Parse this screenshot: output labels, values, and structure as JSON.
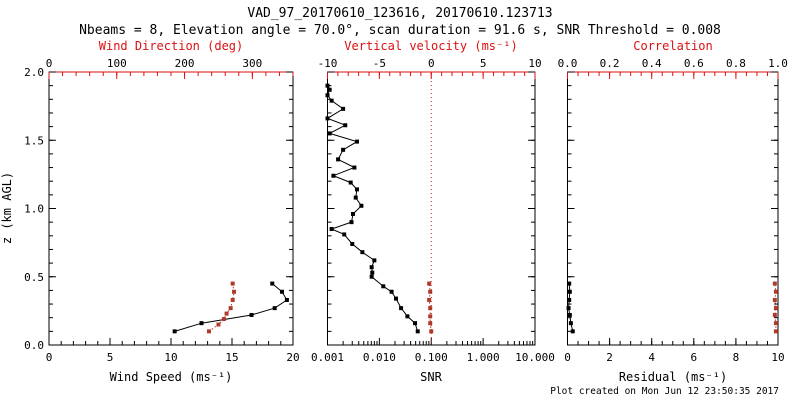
{
  "header": {
    "title": "VAD_97_20170610_123616, 20170610.123713",
    "subtitle": "Nbeams = 8, Elevation angle = 70.0°, scan duration = 91.6 s, SNR Threshold = 0.008"
  },
  "footer": {
    "created_text": "Plot created on Mon Jun 12 23:50:35 2017"
  },
  "colors": {
    "axis_red": "#dd1111",
    "series_red": "#b03a2a",
    "series_black": "#000000",
    "background": "#ffffff"
  },
  "chart_data": {
    "type": "scatter",
    "title": "VAD_97_20170610_123616, 20170610.123713",
    "subtitle": "Nbeams = 8, Elevation angle = 70.0°, scan duration = 91.6 s, SNR Threshold = 0.008",
    "grid": false,
    "legend": false,
    "y_axis": {
      "label": "z (km AGL)",
      "lim": [
        0,
        2
      ],
      "ticks": [
        0,
        0.5,
        1.0,
        1.5,
        2.0
      ],
      "tick_labels": [
        "0.0",
        "0.5",
        "1.0",
        "1.5",
        "2.0"
      ],
      "minor": 0.1
    },
    "panels": [
      {
        "id": "wind",
        "top_axis": {
          "label": "Wind Direction (deg)",
          "lim": [
            0,
            360
          ],
          "ticks": [
            0,
            100,
            200,
            300
          ],
          "tick_labels": [
            "0",
            "100",
            "200",
            "300"
          ],
          "minor": 20,
          "color": "red"
        },
        "bottom_axis": {
          "label": "Wind Speed (ms⁻¹)",
          "lim": [
            0,
            20
          ],
          "ticks": [
            0,
            5,
            10,
            15,
            20
          ],
          "tick_labels": [
            "0",
            "5",
            "10",
            "15",
            "20"
          ],
          "minor": 1,
          "color": "black"
        },
        "series": [
          {
            "name": "wind-speed",
            "axis": "bottom",
            "color": "black",
            "line": "solid",
            "z": [
              0.1,
              0.16,
              0.22,
              0.27,
              0.33,
              0.39,
              0.45
            ],
            "values": [
              10.3,
              12.5,
              16.6,
              18.5,
              19.5,
              19.1,
              18.3
            ]
          },
          {
            "name": "wind-direction",
            "axis": "top",
            "color": "red",
            "line": "dotted",
            "z": [
              0.1,
              0.15,
              0.19,
              0.23,
              0.27,
              0.33,
              0.39,
              0.45
            ],
            "values": [
              236,
              250,
              258,
              262,
              268,
              271,
              273,
              271
            ]
          }
        ]
      },
      {
        "id": "snr",
        "top_axis": {
          "label": "Vertical velocity (ms⁻¹)",
          "lim": [
            -10,
            10
          ],
          "ticks": [
            -10,
            -5,
            0,
            5,
            10
          ],
          "tick_labels": [
            "-10",
            "-5",
            "0",
            "5",
            "10"
          ],
          "minor": 1,
          "color": "red"
        },
        "bottom_axis": {
          "label": "SNR",
          "scale": "log",
          "lim": [
            0.001,
            10
          ],
          "ticks": [
            0.001,
            0.01,
            0.1,
            1,
            10
          ],
          "tick_labels": [
            "0.001",
            "0.010",
            "0.100",
            "1.000",
            "10.000"
          ],
          "color": "black"
        },
        "ref_line": {
          "axis": "top",
          "value": 0,
          "color": "red",
          "style": "dotted"
        },
        "series": [
          {
            "name": "snr-profile",
            "axis": "bottom",
            "color": "black",
            "line": "solid",
            "z": [
              1.9,
              1.87,
              1.83,
              1.79,
              1.73,
              1.66,
              1.61,
              1.55,
              1.49,
              1.43,
              1.36,
              1.3,
              1.24,
              1.19,
              1.14,
              1.08,
              1.02,
              0.96,
              0.9,
              0.85,
              0.81,
              0.74,
              0.68,
              0.62,
              0.57,
              0.53,
              0.5,
              0.43,
              0.39,
              0.34,
              0.27,
              0.21,
              0.16,
              0.1
            ],
            "values": [
              0.001,
              0.0011,
              0.001,
              0.0012,
              0.002,
              0.001,
              0.0022,
              0.0011,
              0.0037,
              0.002,
              0.0016,
              0.0033,
              0.0013,
              0.0028,
              0.0037,
              0.0035,
              0.0045,
              0.0031,
              0.0029,
              0.0012,
              0.0021,
              0.003,
              0.0047,
              0.008,
              0.0071,
              0.0073,
              0.0071,
              0.0119,
              0.0172,
              0.0209,
              0.0262,
              0.0347,
              0.0487,
              0.0549
            ]
          },
          {
            "name": "vertical-velocity",
            "axis": "top",
            "color": "red",
            "line": "dotted",
            "z": [
              0.1,
              0.16,
              0.21,
              0.27,
              0.33,
              0.39,
              0.45
            ],
            "values": [
              0.0,
              -0.1,
              -0.1,
              -0.1,
              -0.2,
              -0.1,
              -0.2
            ]
          }
        ]
      },
      {
        "id": "residual",
        "top_axis": {
          "label": "Correlation",
          "lim": [
            0,
            1
          ],
          "ticks": [
            0,
            0.2,
            0.4,
            0.6,
            0.8,
            1.0
          ],
          "tick_labels": [
            "0.0",
            "0.2",
            "0.4",
            "0.6",
            "0.8",
            "1.0"
          ],
          "minor": 0.05,
          "color": "red"
        },
        "bottom_axis": {
          "label": "Residual (ms⁻¹)",
          "lim": [
            0,
            10
          ],
          "ticks": [
            0,
            2,
            4,
            6,
            8,
            10
          ],
          "tick_labels": [
            "0",
            "2",
            "4",
            "6",
            "8",
            "10"
          ],
          "minor": 0.5,
          "color": "black"
        },
        "series": [
          {
            "name": "residual",
            "axis": "bottom",
            "color": "black",
            "line": "solid",
            "z": [
              0.1,
              0.16,
              0.22,
              0.27,
              0.33,
              0.39,
              0.45
            ],
            "values": [
              0.25,
              0.16,
              0.11,
              0.05,
              0.08,
              0.11,
              0.08
            ]
          },
          {
            "name": "correlation",
            "axis": "top",
            "color": "red",
            "line": "dotted",
            "z": [
              0.1,
              0.16,
              0.22,
              0.27,
              0.33,
              0.39,
              0.45
            ],
            "values": [
              0.99,
              0.99,
              0.985,
              0.99,
              0.985,
              0.99,
              0.985
            ]
          }
        ]
      }
    ]
  }
}
